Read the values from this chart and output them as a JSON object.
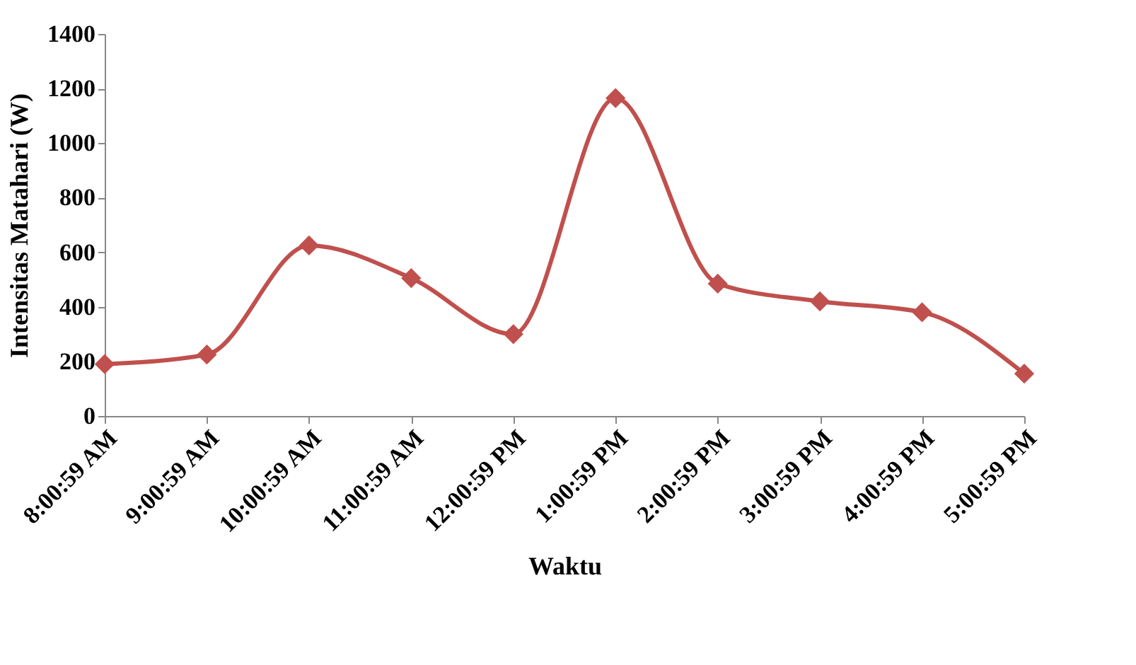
{
  "chart_data": {
    "type": "line",
    "xlabel": "Waktu",
    "ylabel": "Intensitas Matahari (W)",
    "categories": [
      "8:00:59 AM",
      "9:00:59 AM",
      "10:00:59 AM",
      "11:00:59 AM",
      "12:00:59 PM",
      "1:00:59 PM",
      "2:00:59 PM",
      "3:00:59 PM",
      "4:00:59 PM",
      "5:00:59 PM"
    ],
    "series": [
      {
        "color": "#c0504d",
        "values": [
          190,
          225,
          625,
          505,
          300,
          1165,
          485,
          420,
          380,
          155
        ]
      }
    ],
    "ylim": [
      0,
      1400
    ],
    "yticks": [
      0,
      200,
      400,
      600,
      800,
      1000,
      1200,
      1400
    ],
    "grid": false,
    "legend": false,
    "marker": "diamond",
    "line_style": "solid"
  }
}
